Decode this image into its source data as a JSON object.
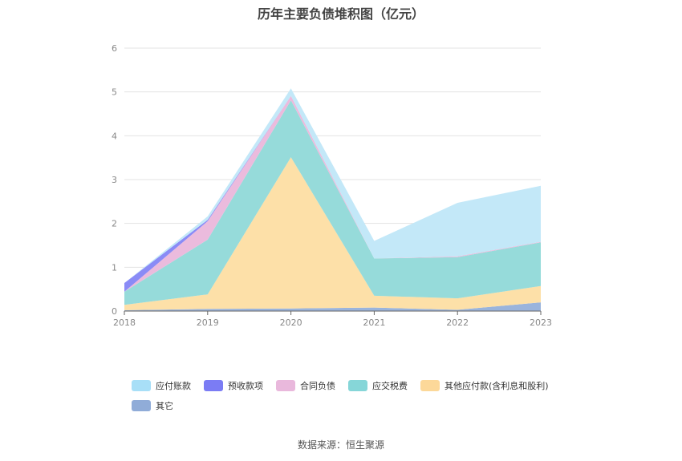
{
  "title": "历年主要负债堆积图（亿元）",
  "source": "数据来源：恒生聚源",
  "chart_data": {
    "type": "area",
    "stacked": true,
    "title": "历年主要负债堆积图（亿元）",
    "x": [
      "2018",
      "2019",
      "2020",
      "2021",
      "2022",
      "2023"
    ],
    "ylim": [
      0,
      6
    ],
    "yticks": [
      "0",
      "1",
      "2",
      "3",
      "4",
      "5",
      "6"
    ],
    "grid": true,
    "legend_position": "bottom",
    "series": [
      {
        "name": "其它",
        "color": "#9ab4dc",
        "values": [
          0.02,
          0.05,
          0.06,
          0.08,
          0.03,
          0.2
        ]
      },
      {
        "name": "其他应付款(含利息和股利)",
        "color": "#fde0a8",
        "values": [
          0.12,
          0.33,
          3.45,
          0.27,
          0.26,
          0.37
        ]
      },
      {
        "name": "应交税费",
        "color": "#96dbda",
        "values": [
          0.3,
          1.25,
          1.3,
          0.85,
          0.94,
          1.0
        ]
      },
      {
        "name": "合同负债",
        "color": "#ebbbdd",
        "values": [
          0.0,
          0.42,
          0.1,
          0.0,
          0.02,
          0.01
        ]
      },
      {
        "name": "预收款项",
        "color": "#8a8bf6",
        "values": [
          0.2,
          0.03,
          0.0,
          0.0,
          0.0,
          0.0
        ]
      },
      {
        "name": "应付账款",
        "color": "#c3e8f8",
        "values": [
          0.0,
          0.08,
          0.17,
          0.4,
          1.22,
          1.28
        ]
      }
    ]
  },
  "legend": {
    "items": [
      {
        "label": "应付账款",
        "color": "#a8dff7"
      },
      {
        "label": "预收款项",
        "color": "#7b7cf4"
      },
      {
        "label": "合同负债",
        "color": "#e9b8dc"
      },
      {
        "label": "应交税费",
        "color": "#86d6d8"
      },
      {
        "label": "其他应付款(含利息和股利)",
        "color": "#fcd899"
      },
      {
        "label": "其它",
        "color": "#90acd8"
      }
    ]
  }
}
